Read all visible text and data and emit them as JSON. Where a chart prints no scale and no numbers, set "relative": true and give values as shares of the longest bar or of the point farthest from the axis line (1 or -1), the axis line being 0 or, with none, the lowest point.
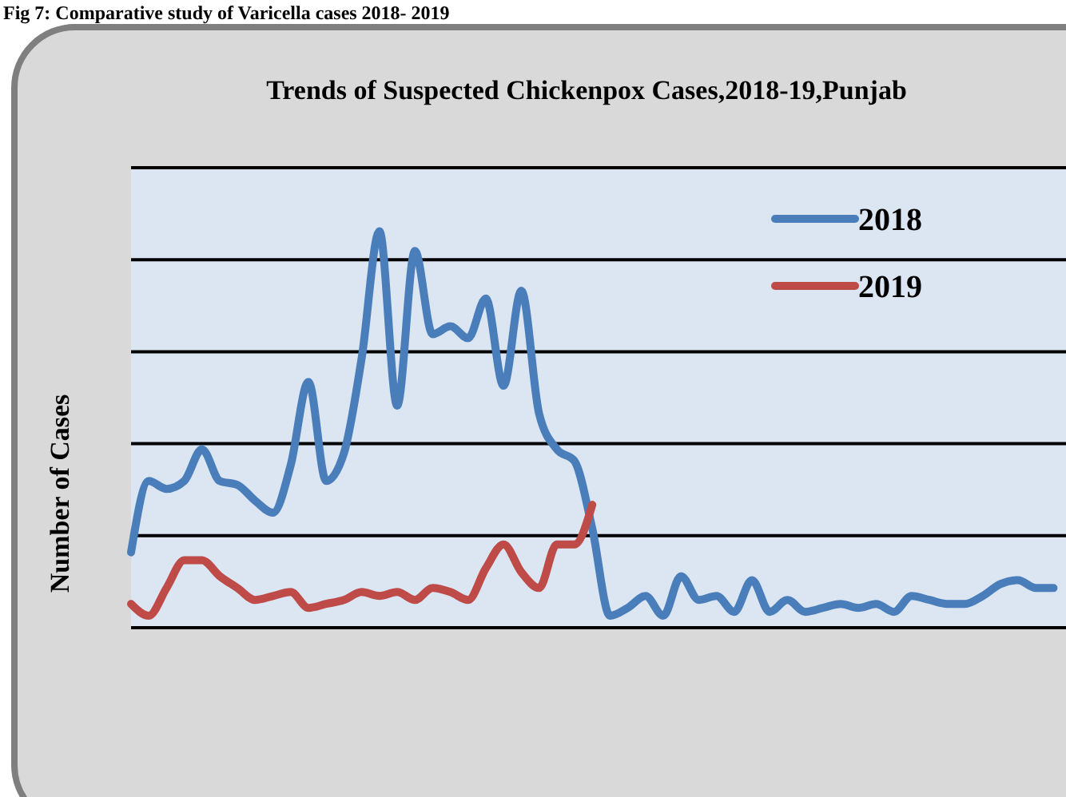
{
  "chart_data": {
    "type": "line",
    "title": "Trends of Suspected Chickenpox Cases,2018-19,Punjab",
    "ylabel": "Number of Cases",
    "annotations": [
      "Fig 7: Comparative study of Varicella cases 2018- 2019"
    ],
    "relative": true,
    "grid": "y",
    "legend": "top right",
    "categories": [
      null,
      null,
      null,
      null,
      null,
      null,
      null,
      null,
      null,
      null,
      null,
      null,
      null,
      null,
      null,
      null,
      null,
      null,
      null,
      null,
      null,
      null,
      null,
      null,
      null,
      null,
      null,
      null,
      null,
      null,
      null,
      null,
      null,
      null,
      null,
      null,
      null,
      null,
      null,
      null,
      null,
      null,
      null,
      null,
      null,
      null,
      null,
      null,
      null,
      null,
      null,
      null,
      null
    ],
    "series": [
      {
        "name": "2018",
        "color": "#4a7ebb",
        "values": [
          0.19,
          0.37,
          0.35,
          0.37,
          0.45,
          0.37,
          0.36,
          0.32,
          0.29,
          0.41,
          0.62,
          0.37,
          0.44,
          0.68,
          1,
          0.56,
          0.95,
          0.74,
          0.76,
          0.73,
          0.83,
          0.61,
          0.85,
          0.54,
          0.45,
          0.42,
          0.25,
          0.03,
          0.05,
          0.08,
          0.03,
          0.13,
          0.07,
          0.08,
          0.04,
          0.12,
          0.04,
          0.07,
          0.04,
          0.05,
          0.06,
          0.05,
          0.06,
          0.04,
          0.08,
          0.07,
          0.06,
          0.06,
          0.08,
          0.11,
          0.12,
          0.1,
          0.1
        ]
      },
      {
        "name": "2019",
        "color": "#be4b48",
        "values": [
          0.06,
          0.03,
          0.1,
          0.17,
          0.17,
          0.13,
          0.1,
          0.07,
          0.08,
          0.09,
          0.05,
          0.06,
          0.07,
          0.09,
          0.08,
          0.09,
          0.07,
          0.1,
          0.09,
          0.07,
          0.15,
          0.21,
          0.14,
          0.1,
          0.21,
          0.21,
          0.31,
          null,
          null,
          null,
          null,
          null,
          null,
          null,
          null,
          null,
          null,
          null,
          null,
          null,
          null,
          null,
          null,
          null,
          null,
          null,
          null,
          null,
          null,
          null,
          null,
          null,
          null
        ]
      }
    ]
  }
}
